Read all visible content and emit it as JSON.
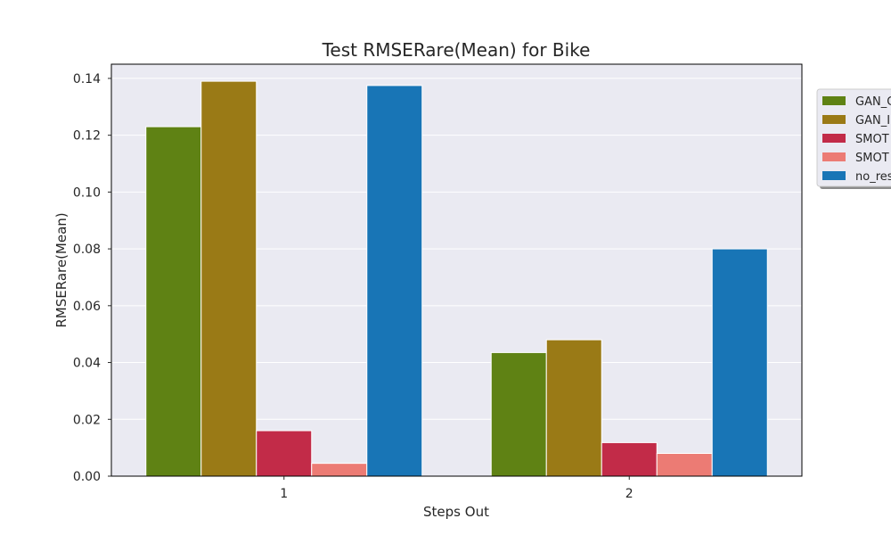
{
  "chart_data": {
    "type": "bar",
    "title": "Test RMSERare(Mean) for Bike",
    "xlabel": "Steps Out",
    "ylabel": "RMSERare(Mean)",
    "categories": [
      "1",
      "2"
    ],
    "ylim": [
      0,
      0.145
    ],
    "yticks": [
      "0.00",
      "0.02",
      "0.04",
      "0.06",
      "0.08",
      "0.10",
      "0.12",
      "0.14"
    ],
    "grid": true,
    "legend_position": "outside-right",
    "series": [
      {
        "name": "GAN_C",
        "color": "#5f8214",
        "values": [
          0.123,
          0.0435
        ]
      },
      {
        "name": "GAN_B",
        "color": "#9a7a16",
        "values": [
          0.139,
          0.048
        ]
      },
      {
        "name": "SMOTER",
        "color": "#c22b48",
        "values": [
          0.016,
          0.0118
        ]
      },
      {
        "name": "SMOTEB",
        "color": "#ec7b74",
        "values": [
          0.0045,
          0.008
        ]
      },
      {
        "name": "no_resampling",
        "color": "#1875b6",
        "values": [
          0.1375,
          0.08
        ]
      }
    ],
    "legend_visible_text": [
      "GAN_C",
      "GAN_I",
      "SMOT",
      "SMOT",
      "no_res"
    ]
  }
}
